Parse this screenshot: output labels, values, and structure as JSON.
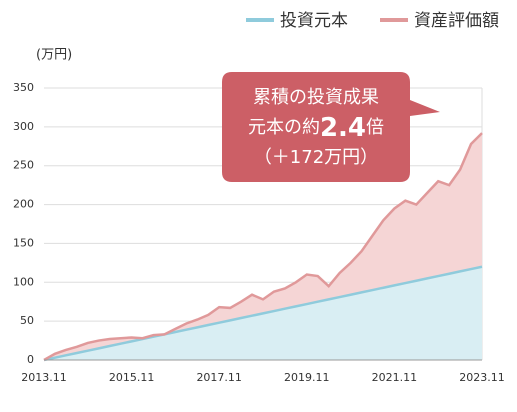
{
  "chart_data": {
    "type": "area",
    "y_label": "(万円)",
    "x": [
      "2013.11",
      "2014.02",
      "2014.05",
      "2014.08",
      "2014.11",
      "2015.02",
      "2015.05",
      "2015.08",
      "2015.11",
      "2016.02",
      "2016.05",
      "2016.08",
      "2016.11",
      "2017.02",
      "2017.05",
      "2017.08",
      "2017.11",
      "2018.02",
      "2018.05",
      "2018.08",
      "2018.11",
      "2019.02",
      "2019.05",
      "2019.08",
      "2019.11",
      "2020.02",
      "2020.05",
      "2020.08",
      "2020.11",
      "2021.02",
      "2021.05",
      "2021.08",
      "2021.11",
      "2022.02",
      "2022.05",
      "2022.08",
      "2022.11",
      "2023.02",
      "2023.05",
      "2023.08",
      "2023.11"
    ],
    "xticks": [
      "2013.11",
      "2015.11",
      "2017.11",
      "2019.11",
      "2021.11",
      "2023.11"
    ],
    "series": [
      {
        "name": "投資元本",
        "color": "#8fcbdc",
        "fill": "#d9eef3",
        "values": [
          0,
          3,
          6,
          9,
          12,
          15,
          18,
          21,
          24,
          27,
          30,
          33,
          36,
          39,
          42,
          45,
          48,
          51,
          54,
          57,
          60,
          63,
          66,
          69,
          72,
          75,
          78,
          81,
          84,
          87,
          90,
          93,
          96,
          99,
          102,
          105,
          108,
          111,
          114,
          117,
          120
        ]
      },
      {
        "name": "資産評価額",
        "color": "#e0999a",
        "fill": "#f5d5d5",
        "values": [
          0,
          8,
          13,
          17,
          22,
          25,
          27,
          28,
          29,
          28,
          32,
          33,
          40,
          47,
          52,
          58,
          68,
          67,
          75,
          84,
          78,
          88,
          92,
          100,
          110,
          108,
          95,
          112,
          125,
          140,
          160,
          180,
          195,
          205,
          200,
          215,
          230,
          225,
          245,
          278,
          292
        ]
      }
    ],
    "ylim": [
      0,
      350
    ],
    "yticks": [
      0,
      50,
      100,
      150,
      200,
      250,
      300,
      350
    ],
    "grid": true,
    "annotation": {
      "line1": "累積の投資成果",
      "line2_prefix": "元本の約",
      "line2_emphasis": "2.4",
      "line2_suffix": "倍",
      "line3": "（＋172万円）",
      "color": "#cc5f66"
    }
  }
}
